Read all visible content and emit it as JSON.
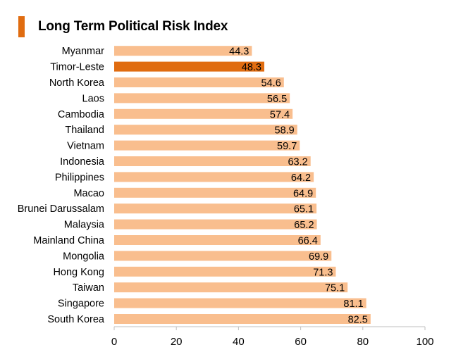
{
  "title": "Long Term Political Risk Index",
  "colors": {
    "accent": "#E06C10",
    "bar": "#F9BE8E",
    "highlight": "#E06C10",
    "axis": "#BFBFBF",
    "text": "#000000"
  },
  "chart_data": {
    "type": "bar",
    "orientation": "horizontal",
    "title": "Long Term Political Risk Index",
    "categories": [
      "Myanmar",
      "Timor-Leste",
      "North Korea",
      "Laos",
      "Cambodia",
      "Thailand",
      "Vietnam",
      "Indonesia",
      "Philippines",
      "Macao",
      "Brunei Darussalam",
      "Malaysia",
      "Mainland China",
      "Mongolia",
      "Hong Kong",
      "Taiwan",
      "Singapore",
      "South Korea"
    ],
    "values": [
      44.3,
      48.3,
      54.6,
      56.5,
      57.4,
      58.9,
      59.7,
      63.2,
      64.2,
      64.9,
      65.1,
      65.2,
      66.4,
      69.9,
      71.3,
      75.1,
      81.1,
      82.5
    ],
    "value_labels": [
      "44.3",
      "48.3",
      "54.6",
      "56.5",
      "57.4",
      "58.9",
      "59.7",
      "63.2",
      "64.2",
      "64.9",
      "65.1",
      "65.2",
      "66.4",
      "69.9",
      "71.3",
      "75.1",
      "81.1",
      "82.5"
    ],
    "highlighted_category": "Timor-Leste",
    "xlim": [
      0,
      100
    ],
    "xticks": [
      0,
      20,
      40,
      60,
      80,
      100
    ],
    "xtick_labels": [
      "0",
      "20",
      "40",
      "60",
      "80",
      "100"
    ],
    "xlabel": "",
    "ylabel": "",
    "grid": false,
    "legend": "none"
  }
}
